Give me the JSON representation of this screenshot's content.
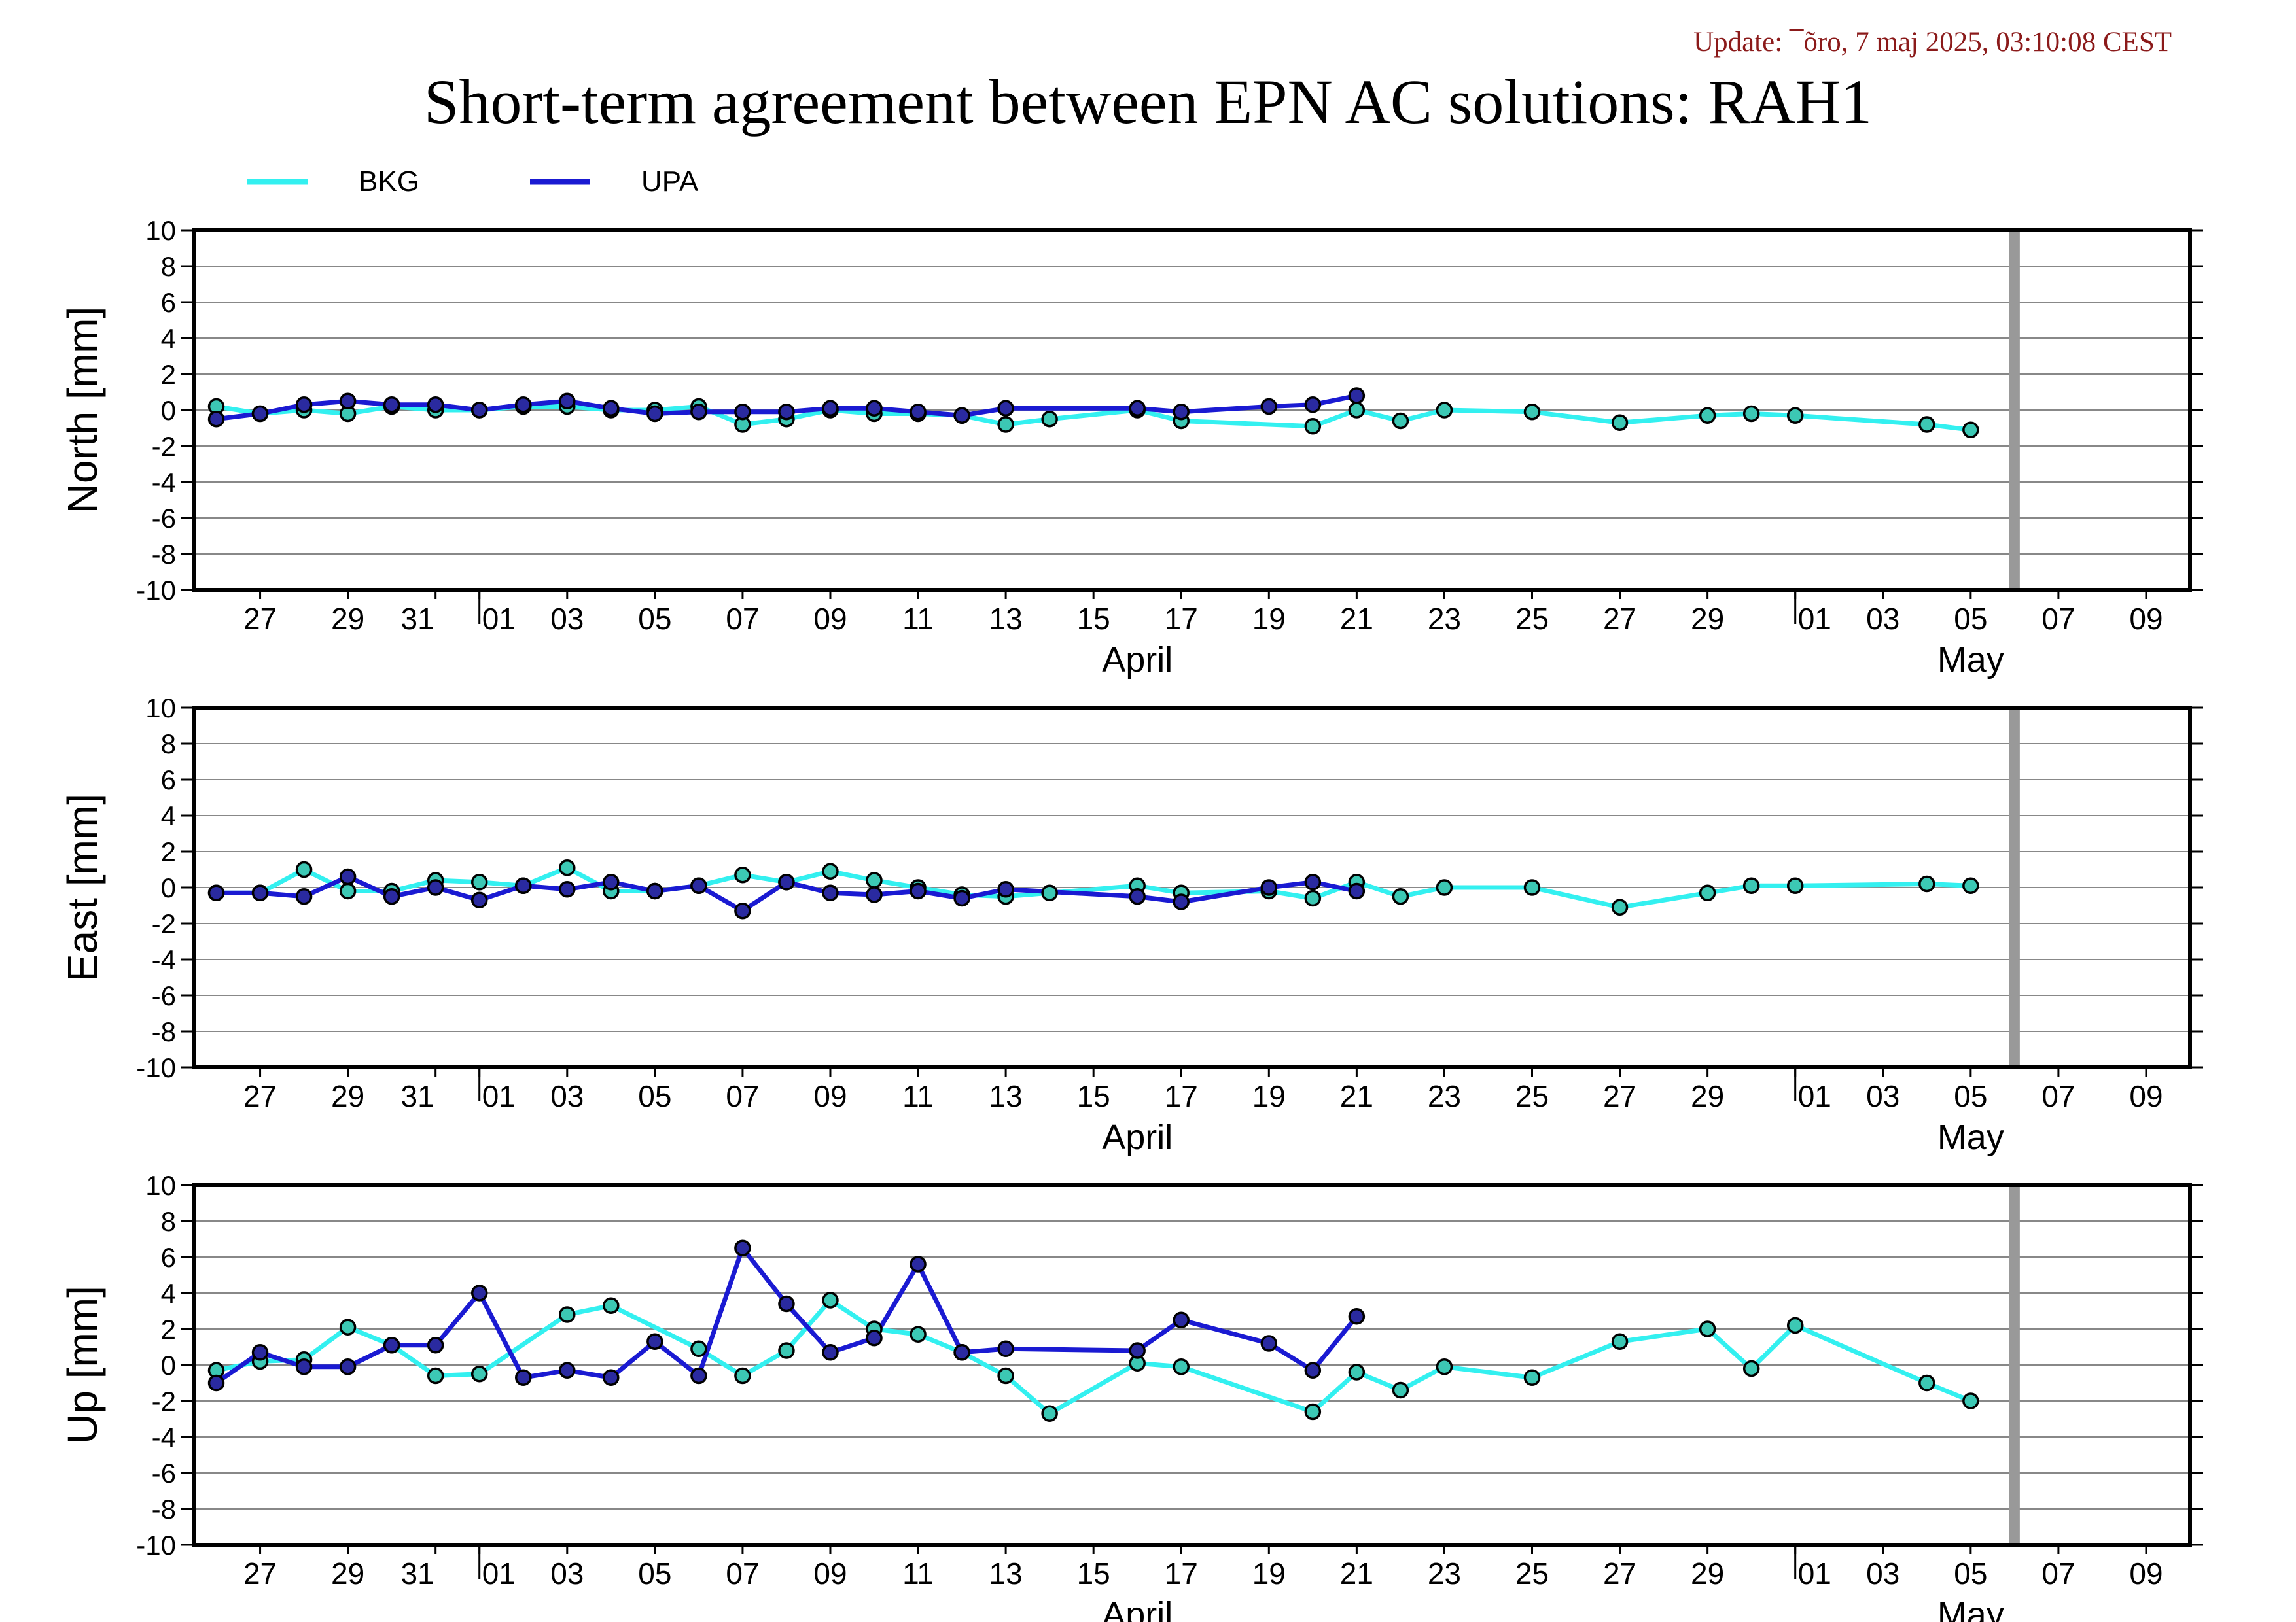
{
  "header": {
    "update": "Update: ¯õro, 7 maj 2025, 03:10:08 CEST",
    "title": "Short-term agreement between EPN AC solutions: RAH1"
  },
  "colors": {
    "bkg": "#33f0f0",
    "upa": "#1a1ad2",
    "marker_edge": "#000000",
    "bkg_marker": "#3cc8b4",
    "upa_marker": "#2a2aa0",
    "now_line": "#999999",
    "grid": "#888888"
  },
  "chart_data": {
    "type": "line",
    "legend": {
      "placement": "top-left",
      "entries": [
        {
          "key": "bkg",
          "label": "BKG"
        },
        {
          "key": "upa",
          "label": "UPA"
        }
      ]
    },
    "x_range": [
      "2025-03-25T12:00",
      "2025-05-10T00:00"
    ],
    "now_line": "2025-05-06",
    "x_ticks": [
      {
        "date": "2025-03-27",
        "label": "27"
      },
      {
        "date": "2025-03-29",
        "label": "29"
      },
      {
        "date": "2025-03-31",
        "label": "31"
      },
      {
        "date": "2025-04-01",
        "label": "01"
      },
      {
        "date": "2025-04-03",
        "label": "03"
      },
      {
        "date": "2025-04-05",
        "label": "05"
      },
      {
        "date": "2025-04-07",
        "label": "07"
      },
      {
        "date": "2025-04-09",
        "label": "09"
      },
      {
        "date": "2025-04-11",
        "label": "11"
      },
      {
        "date": "2025-04-13",
        "label": "13"
      },
      {
        "date": "2025-04-15",
        "label": "15"
      },
      {
        "date": "2025-04-17",
        "label": "17"
      },
      {
        "date": "2025-04-19",
        "label": "19"
      },
      {
        "date": "2025-04-21",
        "label": "21"
      },
      {
        "date": "2025-04-23",
        "label": "23"
      },
      {
        "date": "2025-04-25",
        "label": "25"
      },
      {
        "date": "2025-04-27",
        "label": "27"
      },
      {
        "date": "2025-04-29",
        "label": "29"
      },
      {
        "date": "2025-05-01",
        "label": "01"
      },
      {
        "date": "2025-05-03",
        "label": "03"
      },
      {
        "date": "2025-05-05",
        "label": "05"
      },
      {
        "date": "2025-05-07",
        "label": "07"
      },
      {
        "date": "2025-05-09",
        "label": "09"
      }
    ],
    "month_labels": [
      {
        "date": "2025-04-16",
        "label": "April"
      },
      {
        "date": "2025-05-05",
        "label": "May"
      }
    ],
    "month_boundaries": [
      "2025-04-01",
      "2025-05-01"
    ],
    "panels": [
      {
        "ylabel": "North [mm]",
        "ylim": [
          -10,
          10
        ],
        "y_ticks": [
          10,
          8,
          6,
          4,
          2,
          0,
          -2,
          -4,
          -6,
          -8,
          -10
        ],
        "series": [
          {
            "name": "BKG",
            "key": "bkg",
            "points": [
              [
                "2025-03-26",
                0.2
              ],
              [
                "2025-03-27",
                -0.2
              ],
              [
                "2025-03-28",
                0.0
              ],
              [
                "2025-03-29",
                -0.2
              ],
              [
                "2025-03-30",
                0.2
              ],
              [
                "2025-03-31",
                0.0
              ],
              [
                "2025-04-01",
                0.0
              ],
              [
                "2025-04-02",
                0.2
              ],
              [
                "2025-04-03",
                0.2
              ],
              [
                "2025-04-04",
                0.0
              ],
              [
                "2025-04-05",
                0.0
              ],
              [
                "2025-04-06",
                0.2
              ],
              [
                "2025-04-07",
                -0.8
              ],
              [
                "2025-04-08",
                -0.5
              ],
              [
                "2025-04-09",
                0.0
              ],
              [
                "2025-04-10",
                -0.2
              ],
              [
                "2025-04-11",
                -0.2
              ],
              [
                "2025-04-12",
                -0.3
              ],
              [
                "2025-04-13",
                -0.8
              ],
              [
                "2025-04-14",
                -0.5
              ],
              [
                "2025-04-16",
                0.0
              ],
              [
                "2025-04-17",
                -0.6
              ],
              [
                "2025-04-20",
                -0.9
              ],
              [
                "2025-04-21",
                0.0
              ],
              [
                "2025-04-22",
                -0.6
              ],
              [
                "2025-04-23",
                0.0
              ],
              [
                "2025-04-25",
                -0.1
              ],
              [
                "2025-04-27",
                -0.7
              ],
              [
                "2025-04-29",
                -0.3
              ],
              [
                "2025-04-30",
                -0.2
              ],
              [
                "2025-05-01",
                -0.3
              ],
              [
                "2025-05-04",
                -0.8
              ],
              [
                "2025-05-05",
                -1.1
              ]
            ]
          },
          {
            "name": "UPA",
            "key": "upa",
            "points": [
              [
                "2025-03-26",
                -0.5
              ],
              [
                "2025-03-27",
                -0.2
              ],
              [
                "2025-03-28",
                0.3
              ],
              [
                "2025-03-29",
                0.5
              ],
              [
                "2025-03-30",
                0.3
              ],
              [
                "2025-03-31",
                0.3
              ],
              [
                "2025-04-01",
                0.0
              ],
              [
                "2025-04-02",
                0.3
              ],
              [
                "2025-04-03",
                0.5
              ],
              [
                "2025-04-04",
                0.1
              ],
              [
                "2025-04-05",
                -0.2
              ],
              [
                "2025-04-06",
                -0.1
              ],
              [
                "2025-04-07",
                -0.1
              ],
              [
                "2025-04-08",
                -0.1
              ],
              [
                "2025-04-09",
                0.1
              ],
              [
                "2025-04-10",
                0.1
              ],
              [
                "2025-04-11",
                -0.1
              ],
              [
                "2025-04-12",
                -0.3
              ],
              [
                "2025-04-13",
                0.1
              ],
              [
                "2025-04-16",
                0.1
              ],
              [
                "2025-04-17",
                -0.1
              ],
              [
                "2025-04-19",
                0.2
              ],
              [
                "2025-04-20",
                0.3
              ],
              [
                "2025-04-21",
                0.8
              ]
            ]
          }
        ]
      },
      {
        "ylabel": "East [mm]",
        "ylim": [
          -10,
          10
        ],
        "y_ticks": [
          10,
          8,
          6,
          4,
          2,
          0,
          -2,
          -4,
          -6,
          -8,
          -10
        ],
        "series": [
          {
            "name": "BKG",
            "key": "bkg",
            "points": [
              [
                "2025-03-26",
                -0.3
              ],
              [
                "2025-03-27",
                -0.3
              ],
              [
                "2025-03-28",
                1.0
              ],
              [
                "2025-03-29",
                -0.2
              ],
              [
                "2025-03-30",
                -0.2
              ],
              [
                "2025-03-31",
                0.4
              ],
              [
                "2025-04-01",
                0.3
              ],
              [
                "2025-04-02",
                0.1
              ],
              [
                "2025-04-03",
                1.1
              ],
              [
                "2025-04-04",
                -0.2
              ],
              [
                "2025-04-05",
                -0.2
              ],
              [
                "2025-04-06",
                0.1
              ],
              [
                "2025-04-07",
                0.7
              ],
              [
                "2025-04-08",
                0.3
              ],
              [
                "2025-04-09",
                0.9
              ],
              [
                "2025-04-10",
                0.4
              ],
              [
                "2025-04-11",
                0.0
              ],
              [
                "2025-04-12",
                -0.4
              ],
              [
                "2025-04-13",
                -0.5
              ],
              [
                "2025-04-14",
                -0.3
              ],
              [
                "2025-04-16",
                0.1
              ],
              [
                "2025-04-17",
                -0.3
              ],
              [
                "2025-04-19",
                -0.2
              ],
              [
                "2025-04-20",
                -0.6
              ],
              [
                "2025-04-21",
                0.3
              ],
              [
                "2025-04-22",
                -0.5
              ],
              [
                "2025-04-23",
                0.0
              ],
              [
                "2025-04-25",
                0.0
              ],
              [
                "2025-04-27",
                -1.1
              ],
              [
                "2025-04-29",
                -0.3
              ],
              [
                "2025-04-30",
                0.1
              ],
              [
                "2025-05-01",
                0.1
              ],
              [
                "2025-05-04",
                0.2
              ],
              [
                "2025-05-05",
                0.1
              ]
            ]
          },
          {
            "name": "UPA",
            "key": "upa",
            "points": [
              [
                "2025-03-26",
                -0.3
              ],
              [
                "2025-03-27",
                -0.3
              ],
              [
                "2025-03-28",
                -0.5
              ],
              [
                "2025-03-29",
                0.6
              ],
              [
                "2025-03-30",
                -0.5
              ],
              [
                "2025-03-31",
                0.0
              ],
              [
                "2025-04-01",
                -0.7
              ],
              [
                "2025-04-02",
                0.1
              ],
              [
                "2025-04-03",
                -0.1
              ],
              [
                "2025-04-04",
                0.3
              ],
              [
                "2025-04-05",
                -0.2
              ],
              [
                "2025-04-06",
                0.1
              ],
              [
                "2025-04-07",
                -1.3
              ],
              [
                "2025-04-08",
                0.3
              ],
              [
                "2025-04-09",
                -0.3
              ],
              [
                "2025-04-10",
                -0.4
              ],
              [
                "2025-04-11",
                -0.2
              ],
              [
                "2025-04-12",
                -0.6
              ],
              [
                "2025-04-13",
                -0.1
              ],
              [
                "2025-04-16",
                -0.5
              ],
              [
                "2025-04-17",
                -0.8
              ],
              [
                "2025-04-19",
                0.0
              ],
              [
                "2025-04-20",
                0.3
              ],
              [
                "2025-04-21",
                -0.2
              ]
            ]
          }
        ]
      },
      {
        "ylabel": "Up [mm]",
        "ylim": [
          -10,
          10
        ],
        "y_ticks": [
          10,
          8,
          6,
          4,
          2,
          0,
          -2,
          -4,
          -6,
          -8,
          -10
        ],
        "series": [
          {
            "name": "BKG",
            "key": "bkg",
            "points": [
              [
                "2025-03-26",
                -0.3
              ],
              [
                "2025-03-27",
                0.2
              ],
              [
                "2025-03-28",
                0.3
              ],
              [
                "2025-03-29",
                2.1
              ],
              [
                "2025-03-30",
                1.1
              ],
              [
                "2025-03-31",
                -0.6
              ],
              [
                "2025-04-01",
                -0.5
              ],
              [
                "2025-04-03",
                2.8
              ],
              [
                "2025-04-04",
                3.3
              ],
              [
                "2025-04-06",
                0.9
              ],
              [
                "2025-04-07",
                -0.6
              ],
              [
                "2025-04-08",
                0.8
              ],
              [
                "2025-04-09",
                3.6
              ],
              [
                "2025-04-10",
                2.0
              ],
              [
                "2025-04-11",
                1.7
              ],
              [
                "2025-04-12",
                0.7
              ],
              [
                "2025-04-13",
                -0.6
              ],
              [
                "2025-04-14",
                -2.7
              ],
              [
                "2025-04-16",
                0.1
              ],
              [
                "2025-04-17",
                -0.1
              ],
              [
                "2025-04-20",
                -2.6
              ],
              [
                "2025-04-21",
                -0.4
              ],
              [
                "2025-04-22",
                -1.4
              ],
              [
                "2025-04-23",
                -0.1
              ],
              [
                "2025-04-25",
                -0.7
              ],
              [
                "2025-04-27",
                1.3
              ],
              [
                "2025-04-29",
                2.0
              ],
              [
                "2025-04-30",
                -0.2
              ],
              [
                "2025-05-01",
                2.2
              ],
              [
                "2025-05-04",
                -1.0
              ],
              [
                "2025-05-05",
                -2.0
              ]
            ]
          },
          {
            "name": "UPA",
            "key": "upa",
            "points": [
              [
                "2025-03-26",
                -1.0
              ],
              [
                "2025-03-27",
                0.7
              ],
              [
                "2025-03-28",
                -0.1
              ],
              [
                "2025-03-29",
                -0.1
              ],
              [
                "2025-03-30",
                1.1
              ],
              [
                "2025-03-31",
                1.1
              ],
              [
                "2025-04-01",
                4.0
              ],
              [
                "2025-04-02",
                -0.7
              ],
              [
                "2025-04-03",
                -0.3
              ],
              [
                "2025-04-04",
                -0.7
              ],
              [
                "2025-04-05",
                1.3
              ],
              [
                "2025-04-06",
                -0.6
              ],
              [
                "2025-04-07",
                6.5
              ],
              [
                "2025-04-08",
                3.4
              ],
              [
                "2025-04-09",
                0.7
              ],
              [
                "2025-04-10",
                1.5
              ],
              [
                "2025-04-11",
                5.6
              ],
              [
                "2025-04-12",
                0.7
              ],
              [
                "2025-04-13",
                0.9
              ],
              [
                "2025-04-16",
                0.8
              ],
              [
                "2025-04-17",
                2.5
              ],
              [
                "2025-04-19",
                1.2
              ],
              [
                "2025-04-20",
                -0.3
              ],
              [
                "2025-04-21",
                2.7
              ]
            ]
          }
        ]
      }
    ]
  }
}
